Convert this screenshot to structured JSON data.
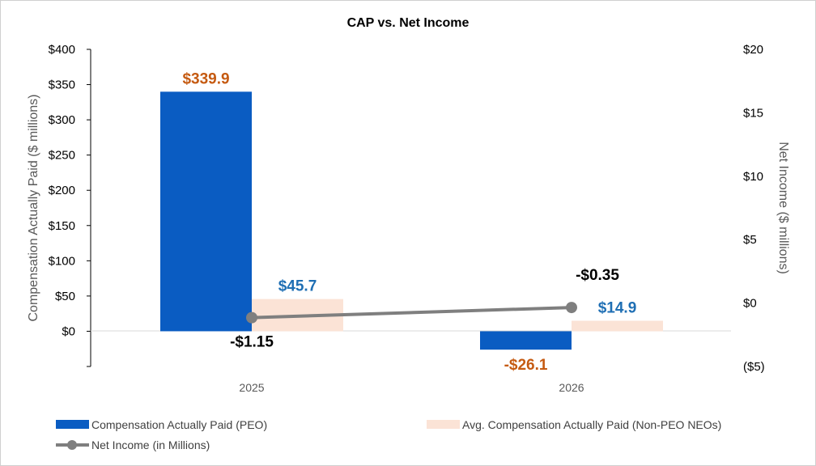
{
  "chart_data": {
    "type": "bar",
    "title": "CAP vs. Net Income",
    "categories": [
      "2025",
      "2026"
    ],
    "series": [
      {
        "name": "Compensation Actually Paid (PEO)",
        "axis": "left",
        "kind": "bar",
        "color": "#0A5CC2",
        "values": [
          339.9,
          -26.1
        ],
        "labels": [
          "$339.9",
          "-$26.1"
        ],
        "label_color": "#C55A11"
      },
      {
        "name": "Avg. Compensation Actually Paid (Non-PEO NEOs)",
        "axis": "left",
        "kind": "bar",
        "color": "#FBE3D6",
        "values": [
          45.7,
          14.9
        ],
        "labels": [
          "$45.7",
          "$14.9"
        ],
        "label_color": "#1F6FB4"
      },
      {
        "name": "Net Income (in Millions)",
        "axis": "right",
        "kind": "line",
        "color": "#7F7F7F",
        "values": [
          -1.15,
          -0.35
        ],
        "labels": [
          "-$1.15",
          "-$0.35"
        ],
        "label_color": "#000000"
      }
    ],
    "left_axis": {
      "label": "Compensation Actually Paid ($ millions)",
      "ylim": [
        -50,
        400
      ],
      "ticks": [
        400,
        350,
        300,
        250,
        200,
        150,
        100,
        50,
        0
      ],
      "tick_labels": [
        "$400",
        "$350",
        "$300",
        "$250",
        "$200",
        "$150",
        "$100",
        "$50",
        "$0"
      ]
    },
    "right_axis": {
      "label": "Net Income ($ millions)",
      "ylim": [
        -5,
        20
      ],
      "ticks": [
        20,
        15,
        10,
        5,
        0,
        -5
      ],
      "tick_labels": [
        "$20",
        "$15",
        "$10",
        "$5",
        "$0",
        "($5)"
      ]
    },
    "grid": false,
    "legend_position": "bottom"
  }
}
